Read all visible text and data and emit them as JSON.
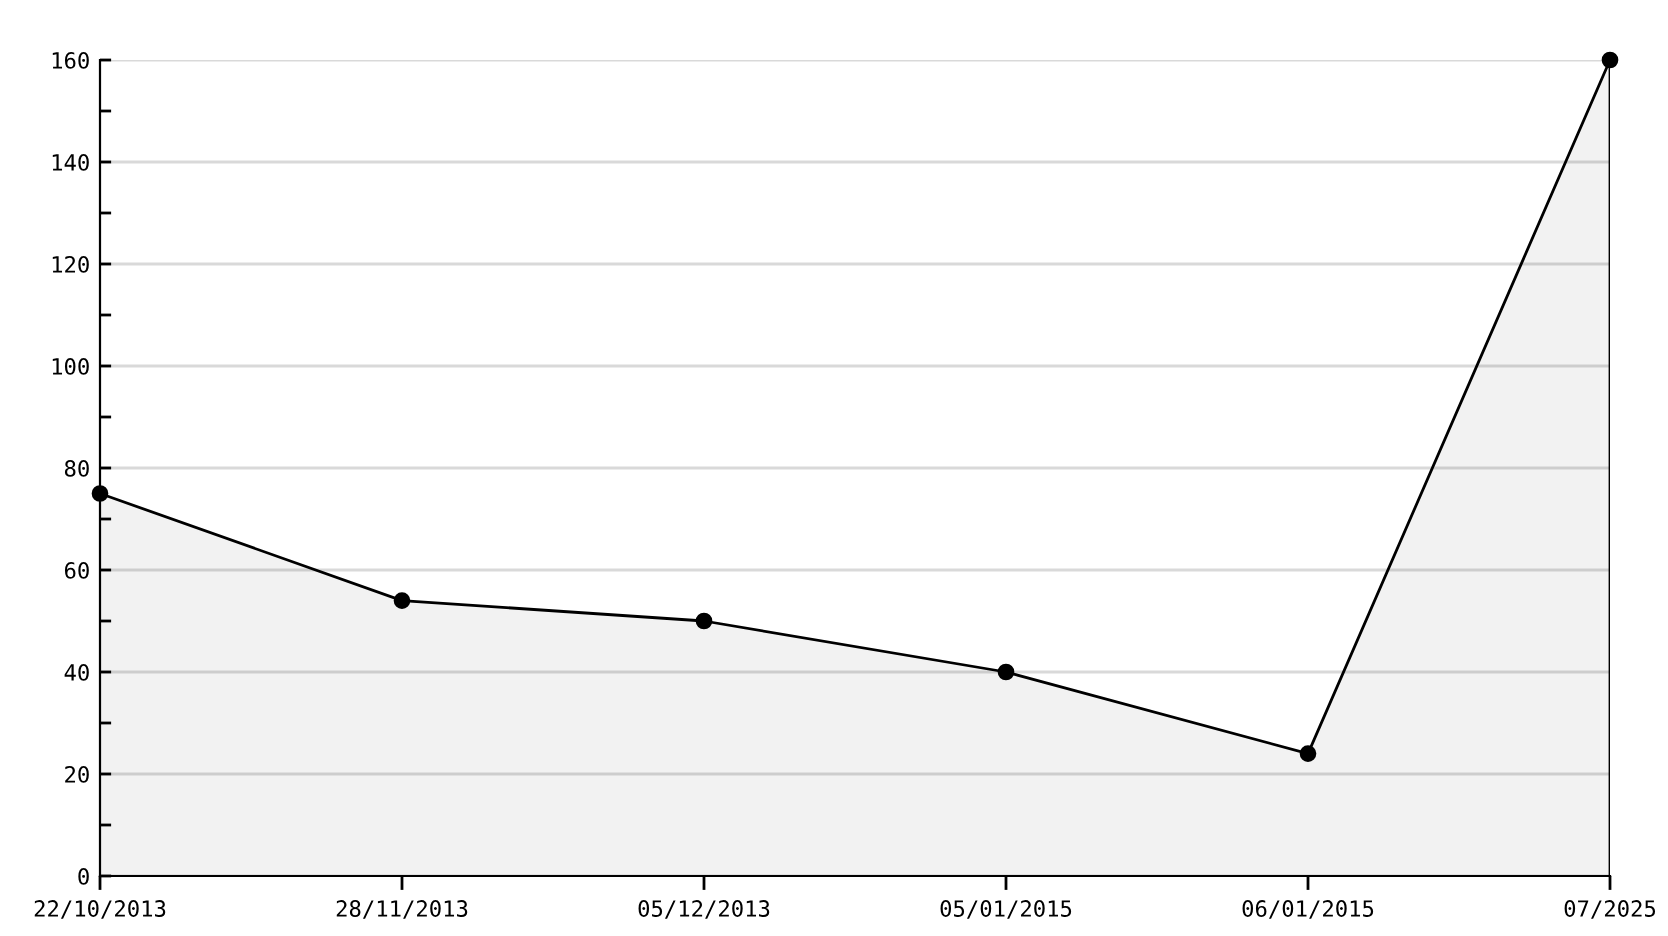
{
  "chart_data": {
    "type": "area",
    "categories": [
      "22/10/2013",
      "28/11/2013",
      "05/12/2013",
      "05/01/2015",
      "06/01/2015",
      "07/2025"
    ],
    "series": [
      {
        "color": "#000000",
        "values": [
          75,
          54,
          50,
          40,
          24,
          160
        ]
      }
    ],
    "ylim": [
      0,
      160
    ],
    "yticks": [
      0,
      {
        "value": 10,
        "label": null
      },
      20,
      {
        "value": 30,
        "label": null
      },
      40,
      {
        "value": 50,
        "label": null
      },
      60,
      {
        "value": 70,
        "label": null
      },
      80,
      {
        "value": 90,
        "label": null
      },
      100,
      {
        "value": 110,
        "label": null
      },
      120,
      {
        "value": 130,
        "label": null
      },
      140,
      {
        "value": 150,
        "label": null
      },
      160
    ],
    "grid": "y",
    "marker": "circle",
    "line_style": "solid"
  }
}
